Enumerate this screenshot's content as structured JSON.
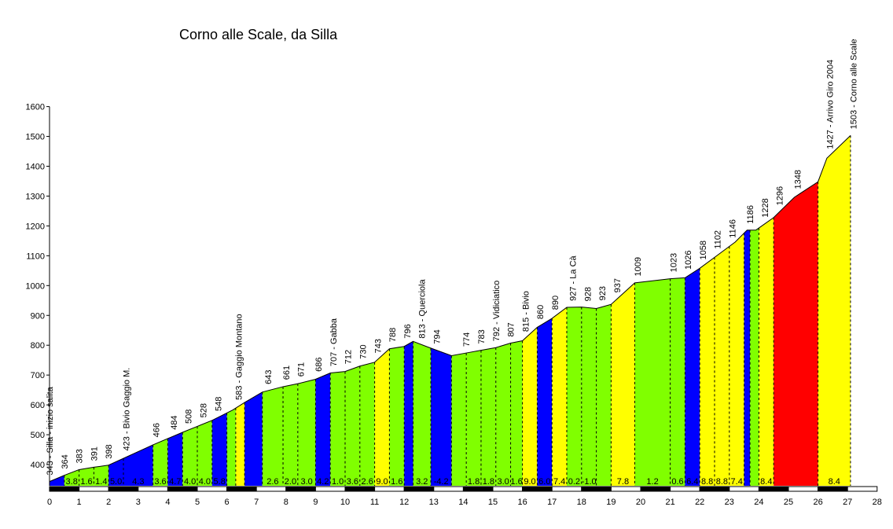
{
  "chart_data": {
    "type": "area",
    "title": "Corno alle Scale, da Silla",
    "xlabel": "",
    "ylabel": "",
    "xlim": [
      0,
      28
    ],
    "ylim": [
      310,
      1600
    ],
    "x_ticks": [
      0,
      1,
      2,
      3,
      4,
      5,
      6,
      7,
      8,
      9,
      10,
      11,
      12,
      13,
      14,
      15,
      16,
      17,
      18,
      19,
      20,
      21,
      22,
      23,
      24,
      25,
      26,
      27,
      28
    ],
    "y_ticks": [
      400,
      500,
      600,
      700,
      800,
      900,
      1000,
      1100,
      1200,
      1300,
      1400,
      1500,
      1600
    ],
    "grid": false,
    "legend": "none",
    "colors": {
      "low": "#80ff00",
      "medium": "#ffff00",
      "high": "#ff0000",
      "descent": "#0000ff",
      "line": "#000000"
    },
    "profile": [
      {
        "x": 0.0,
        "y": 343
      },
      {
        "x": 0.5,
        "y": 364
      },
      {
        "x": 1.0,
        "y": 383
      },
      {
        "x": 1.5,
        "y": 391
      },
      {
        "x": 2.0,
        "y": 398
      },
      {
        "x": 3.5,
        "y": 466
      },
      {
        "x": 4.5,
        "y": 508
      },
      {
        "x": 5.0,
        "y": 528
      },
      {
        "x": 5.5,
        "y": 548
      },
      {
        "x": 6.2,
        "y": 583
      },
      {
        "x": 6.6,
        "y": 608
      },
      {
        "x": 7.2,
        "y": 643
      },
      {
        "x": 7.9,
        "y": 661
      },
      {
        "x": 8.4,
        "y": 671
      },
      {
        "x": 9.0,
        "y": 686
      },
      {
        "x": 9.5,
        "y": 707
      },
      {
        "x": 10.0,
        "y": 712
      },
      {
        "x": 10.5,
        "y": 730
      },
      {
        "x": 11.0,
        "y": 743
      },
      {
        "x": 11.5,
        "y": 788
      },
      {
        "x": 12.0,
        "y": 796
      },
      {
        "x": 12.3,
        "y": 813
      },
      {
        "x": 12.8,
        "y": 794
      },
      {
        "x": 13.6,
        "y": 765
      },
      {
        "x": 14.1,
        "y": 774
      },
      {
        "x": 14.6,
        "y": 783
      },
      {
        "x": 15.1,
        "y": 792
      },
      {
        "x": 15.6,
        "y": 807
      },
      {
        "x": 16.0,
        "y": 815
      },
      {
        "x": 16.5,
        "y": 860
      },
      {
        "x": 17.0,
        "y": 890
      },
      {
        "x": 17.5,
        "y": 927
      },
      {
        "x": 18.0,
        "y": 928
      },
      {
        "x": 18.5,
        "y": 923
      },
      {
        "x": 19.0,
        "y": 937
      },
      {
        "x": 19.8,
        "y": 1009
      },
      {
        "x": 21.0,
        "y": 1023
      },
      {
        "x": 21.5,
        "y": 1026
      },
      {
        "x": 22.0,
        "y": 1058
      },
      {
        "x": 22.6,
        "y": 1102
      },
      {
        "x": 23.2,
        "y": 1146
      },
      {
        "x": 23.6,
        "y": 1186
      },
      {
        "x": 23.9,
        "y": 1186
      },
      {
        "x": 24.5,
        "y": 1228
      },
      {
        "x": 25.2,
        "y": 1296
      },
      {
        "x": 26.0,
        "y": 1348
      },
      {
        "x": 26.3,
        "y": 1427
      },
      {
        "x": 27.1,
        "y": 1503
      }
    ],
    "segments": [
      {
        "x0": 0.0,
        "x1": 0.5,
        "gradient": "",
        "color": "descent"
      },
      {
        "x0": 0.5,
        "x1": 1.0,
        "gradient": "3.8",
        "color": "low"
      },
      {
        "x0": 1.0,
        "x1": 1.5,
        "gradient": "1.6",
        "color": "low"
      },
      {
        "x0": 1.5,
        "x1": 2.0,
        "gradient": "1.4",
        "color": "low"
      },
      {
        "x0": 2.0,
        "x1": 2.5,
        "gradient": "5.0",
        "color": "descent"
      },
      {
        "x0": 2.5,
        "x1": 3.5,
        "gradient": "4.3",
        "color": "descent"
      },
      {
        "x0": 3.5,
        "x1": 4.0,
        "gradient": "3.6",
        "color": "low"
      },
      {
        "x0": 4.0,
        "x1": 4.5,
        "gradient": "4.7",
        "color": "descent"
      },
      {
        "x0": 4.5,
        "x1": 5.0,
        "gradient": "4.0",
        "color": "low"
      },
      {
        "x0": 5.0,
        "x1": 5.5,
        "gradient": "4.0",
        "color": "low"
      },
      {
        "x0": 5.5,
        "x1": 6.0,
        "gradient": "5.8",
        "color": "descent"
      },
      {
        "x0": 6.0,
        "x1": 6.3,
        "gradient": "",
        "color": "low"
      },
      {
        "x0": 6.3,
        "x1": 6.6,
        "gradient": "",
        "color": "medium"
      },
      {
        "x0": 6.6,
        "x1": 7.2,
        "gradient": "",
        "color": "descent"
      },
      {
        "x0": 7.2,
        "x1": 7.9,
        "gradient": "2.6",
        "color": "low"
      },
      {
        "x0": 7.9,
        "x1": 8.4,
        "gradient": "2.0",
        "color": "low"
      },
      {
        "x0": 8.4,
        "x1": 9.0,
        "gradient": "3.0",
        "color": "low"
      },
      {
        "x0": 9.0,
        "x1": 9.5,
        "gradient": "4.2",
        "color": "descent"
      },
      {
        "x0": 9.5,
        "x1": 10.0,
        "gradient": "1.0",
        "color": "low"
      },
      {
        "x0": 10.0,
        "x1": 10.5,
        "gradient": "3.6",
        "color": "low"
      },
      {
        "x0": 10.5,
        "x1": 11.0,
        "gradient": "2.6",
        "color": "low"
      },
      {
        "x0": 11.0,
        "x1": 11.5,
        "gradient": "9.0",
        "color": "medium"
      },
      {
        "x0": 11.5,
        "x1": 12.0,
        "gradient": "1.6",
        "color": "low"
      },
      {
        "x0": 12.0,
        "x1": 12.3,
        "gradient": "",
        "color": "descent"
      },
      {
        "x0": 12.3,
        "x1": 12.9,
        "gradient": "3.2",
        "color": "low"
      },
      {
        "x0": 12.9,
        "x1": 13.6,
        "gradient": "-4.2",
        "color": "descent"
      },
      {
        "x0": 13.6,
        "x1": 14.1,
        "gradient": "",
        "color": "low"
      },
      {
        "x0": 14.1,
        "x1": 14.6,
        "gradient": "1.8",
        "color": "low"
      },
      {
        "x0": 14.6,
        "x1": 15.1,
        "gradient": "1.8",
        "color": "low"
      },
      {
        "x0": 15.1,
        "x1": 15.6,
        "gradient": "3.0",
        "color": "low"
      },
      {
        "x0": 15.6,
        "x1": 16.0,
        "gradient": "1.6",
        "color": "low"
      },
      {
        "x0": 16.0,
        "x1": 16.5,
        "gradient": "9.0",
        "color": "medium"
      },
      {
        "x0": 16.5,
        "x1": 17.0,
        "gradient": "6.0",
        "color": "descent"
      },
      {
        "x0": 17.0,
        "x1": 17.5,
        "gradient": "7.4",
        "color": "medium"
      },
      {
        "x0": 17.5,
        "x1": 18.0,
        "gradient": "0.2",
        "color": "low"
      },
      {
        "x0": 18.0,
        "x1": 18.5,
        "gradient": "-1.0",
        "color": "low"
      },
      {
        "x0": 18.5,
        "x1": 19.0,
        "gradient": "",
        "color": "low"
      },
      {
        "x0": 19.0,
        "x1": 19.8,
        "gradient": "7.8",
        "color": "medium"
      },
      {
        "x0": 19.8,
        "x1": 21.0,
        "gradient": "1.2",
        "color": "low"
      },
      {
        "x0": 21.0,
        "x1": 21.5,
        "gradient": "0.6",
        "color": "low"
      },
      {
        "x0": 21.5,
        "x1": 22.0,
        "gradient": "6.4",
        "color": "descent"
      },
      {
        "x0": 22.0,
        "x1": 22.5,
        "gradient": "8.8",
        "color": "medium"
      },
      {
        "x0": 22.5,
        "x1": 23.0,
        "gradient": "8.8",
        "color": "medium"
      },
      {
        "x0": 23.0,
        "x1": 23.5,
        "gradient": "7.4",
        "color": "medium"
      },
      {
        "x0": 23.5,
        "x1": 23.7,
        "gradient": "",
        "color": "descent"
      },
      {
        "x0": 23.7,
        "x1": 24.0,
        "gradient": "",
        "color": "low"
      },
      {
        "x0": 24.0,
        "x1": 24.5,
        "gradient": "8.4",
        "color": "medium"
      },
      {
        "x0": 24.5,
        "x1": 26.0,
        "gradient": "",
        "color": "high"
      },
      {
        "x0": 26.0,
        "x1": 27.1,
        "gradient": "8.4",
        "color": "medium"
      }
    ],
    "altitude_labels": [
      {
        "x": 0.0,
        "text": "343 - Silla - inizio salita"
      },
      {
        "x": 0.5,
        "text": "364"
      },
      {
        "x": 1.0,
        "text": "383"
      },
      {
        "x": 1.5,
        "text": "391"
      },
      {
        "x": 2.0,
        "text": "398"
      },
      {
        "x": 2.6,
        "text": "423 - Bivio Gaggio M."
      },
      {
        "x": 3.6,
        "text": "466"
      },
      {
        "x": 4.2,
        "text": "484"
      },
      {
        "x": 4.7,
        "text": "508"
      },
      {
        "x": 5.2,
        "text": "528"
      },
      {
        "x": 5.7,
        "text": "548"
      },
      {
        "x": 6.4,
        "text": "583 - Gaggio Montano"
      },
      {
        "x": 7.4,
        "text": "643"
      },
      {
        "x": 8.0,
        "text": "661"
      },
      {
        "x": 8.5,
        "text": "671"
      },
      {
        "x": 9.1,
        "text": "686"
      },
      {
        "x": 9.6,
        "text": "707 - Gabba"
      },
      {
        "x": 10.1,
        "text": "712"
      },
      {
        "x": 10.6,
        "text": "730"
      },
      {
        "x": 11.1,
        "text": "743"
      },
      {
        "x": 11.6,
        "text": "788"
      },
      {
        "x": 12.1,
        "text": "796"
      },
      {
        "x": 12.6,
        "text": "813 - Querciola"
      },
      {
        "x": 13.1,
        "text": "794"
      },
      {
        "x": 14.1,
        "text": "774"
      },
      {
        "x": 14.6,
        "text": "783"
      },
      {
        "x": 15.1,
        "text": "792 - Vidiciatico"
      },
      {
        "x": 15.6,
        "text": "807"
      },
      {
        "x": 16.1,
        "text": "815 - Bivio"
      },
      {
        "x": 16.6,
        "text": "860"
      },
      {
        "x": 17.1,
        "text": "890"
      },
      {
        "x": 17.7,
        "text": "927 - La Cà"
      },
      {
        "x": 18.2,
        "text": "928"
      },
      {
        "x": 18.7,
        "text": "923"
      },
      {
        "x": 19.2,
        "text": "937"
      },
      {
        "x": 19.9,
        "text": "1009"
      },
      {
        "x": 21.1,
        "text": "1023"
      },
      {
        "x": 21.6,
        "text": "1026"
      },
      {
        "x": 22.1,
        "text": "1058"
      },
      {
        "x": 22.6,
        "text": "1102"
      },
      {
        "x": 23.1,
        "text": "1146"
      },
      {
        "x": 23.7,
        "text": "1186"
      },
      {
        "x": 24.2,
        "text": "1228"
      },
      {
        "x": 24.7,
        "text": "1296"
      },
      {
        "x": 25.3,
        "text": "1348"
      },
      {
        "x": 26.4,
        "text": "1427 - Arrivo Giro 2004"
      },
      {
        "x": 27.2,
        "text": "1503 - Corno alle Scale"
      }
    ]
  }
}
